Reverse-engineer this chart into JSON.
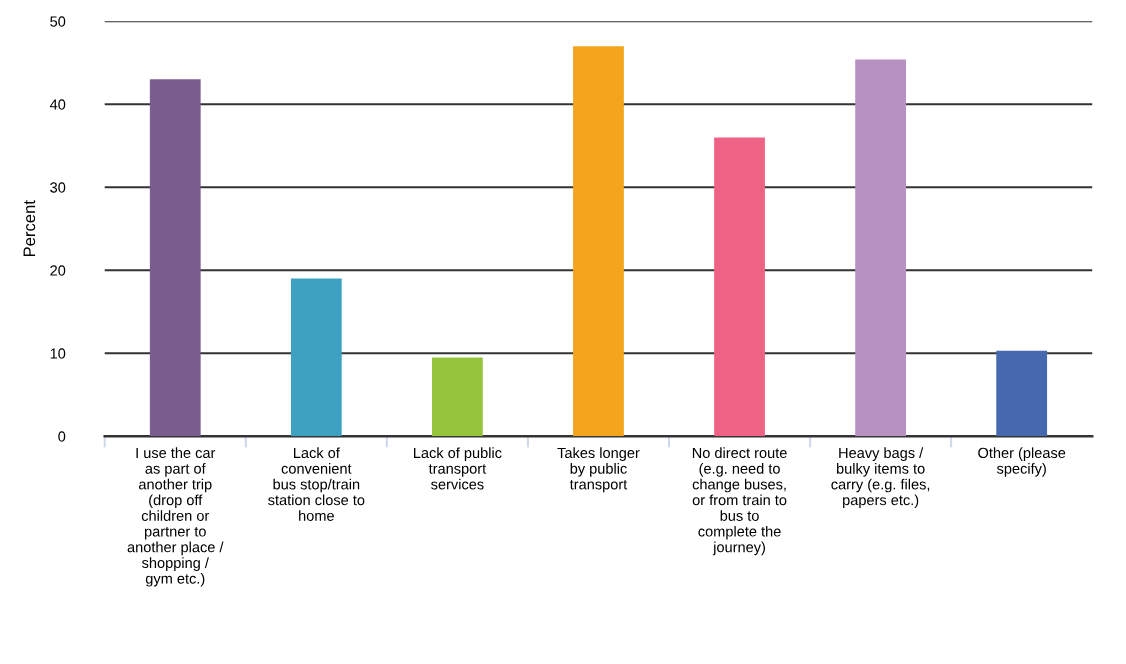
{
  "chart_data": {
    "type": "bar",
    "ylabel": "Percent",
    "categories": [
      "I use the car\nas part of\nanother trip\n(drop off\nchildren or\npartner to\nanother place /\nshopping /\ngym etc.)",
      "Lack of\nconvenient\nbus stop/train\nstation close to\nhome",
      "Lack of public\ntransport\nservices",
      "Takes longer\nby public\ntransport",
      "No direct route\n(e.g. need to\nchange buses,\nor from train to\nbus to\ncomplete the\njourney)",
      "Heavy bags /\nbulky items to\ncarry (e.g. files,\npapers etc.)",
      "Other (please\nspecify)"
    ],
    "values": [
      43,
      19,
      9.5,
      47,
      36,
      45.4,
      10.3
    ],
    "colors": [
      "#7b5e8f",
      "#3fa1c1",
      "#95c43c",
      "#f5a41e",
      "#ee6385",
      "#b891c3",
      "#4568ae"
    ],
    "ylim": [
      0,
      50
    ],
    "yticks": [
      0,
      10,
      20,
      30,
      40,
      50
    ],
    "grid": "y"
  }
}
